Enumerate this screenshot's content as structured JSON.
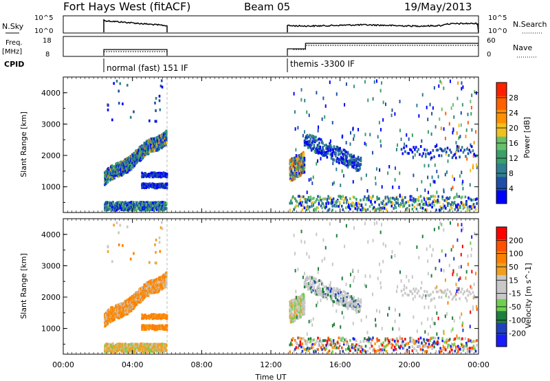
{
  "header": {
    "station": "Fort Hays West (fitACF)",
    "beam": "Beam 05",
    "date": "19/May/2013"
  },
  "top_panels": {
    "nsky_label": "N.Sky",
    "nsky_ticks": [
      "10^5",
      "10^0"
    ],
    "nsearch_label": "N.Search",
    "nsearch_ticks": [
      "10^5",
      "10^0"
    ],
    "freq_label_line1": "Freq.",
    "freq_label_line2": "[MHz]",
    "freq_ticks": [
      "18",
      "8"
    ],
    "nave_label": "Nave",
    "nave_ticks": [
      "60",
      "0"
    ],
    "cpid_label": "CPID",
    "cpid_modes": [
      "normal (fast) 151 IF",
      "themis -3300 IF"
    ]
  },
  "colors": {
    "power_scale": [
      "#0000ff",
      "#1f4ea8",
      "#2f7f8f",
      "#3a9f6a",
      "#67c06b",
      "#f0c020",
      "#ff9000",
      "#ff6000",
      "#ff2000"
    ],
    "velocity_scale": [
      "#1a1aff",
      "#2040c0",
      "#1f7f3f",
      "#6fd04f",
      "#c8c8c8",
      "#c8c8c8",
      "#f0a020",
      "#ff8000",
      "#ff5000",
      "#ff0000"
    ],
    "gray_scatter": "#c8c8c8"
  },
  "chart_data": [
    {
      "type": "heatmap",
      "title": "",
      "xlabel": "Time UT",
      "ylabel": "Slant Range [km]",
      "xlim": [
        "00:00",
        "00:00"
      ],
      "ylim": [
        180,
        4500
      ],
      "x_ticks": [
        "00:00",
        "04:00",
        "08:00",
        "12:00",
        "16:00",
        "20:00",
        "00:00"
      ],
      "y_ticks": [
        "1000",
        "2000",
        "3000",
        "4000"
      ],
      "colorbar_label": "Power [dB]",
      "colorbar_ticks": [
        "28",
        "24",
        "20",
        "16",
        "12",
        "8",
        "4"
      ],
      "colorbar_range": [
        0,
        30
      ]
    },
    {
      "type": "heatmap",
      "title": "",
      "xlabel": "Time UT",
      "ylabel": "Slant Range [km]",
      "xlim": [
        "00:00",
        "00:00"
      ],
      "ylim": [
        180,
        4500
      ],
      "x_ticks": [
        "00:00",
        "04:00",
        "08:00",
        "12:00",
        "16:00",
        "20:00",
        "00:00"
      ],
      "y_ticks": [
        "1000",
        "2000",
        "3000",
        "4000"
      ],
      "colorbar_label": "Velocity [m s^-1]",
      "colorbar_ticks": [
        "200",
        "100",
        "50",
        "15",
        "-15",
        "-50",
        "-100",
        "-200"
      ],
      "colorbar_range": [
        -250,
        250
      ]
    }
  ]
}
